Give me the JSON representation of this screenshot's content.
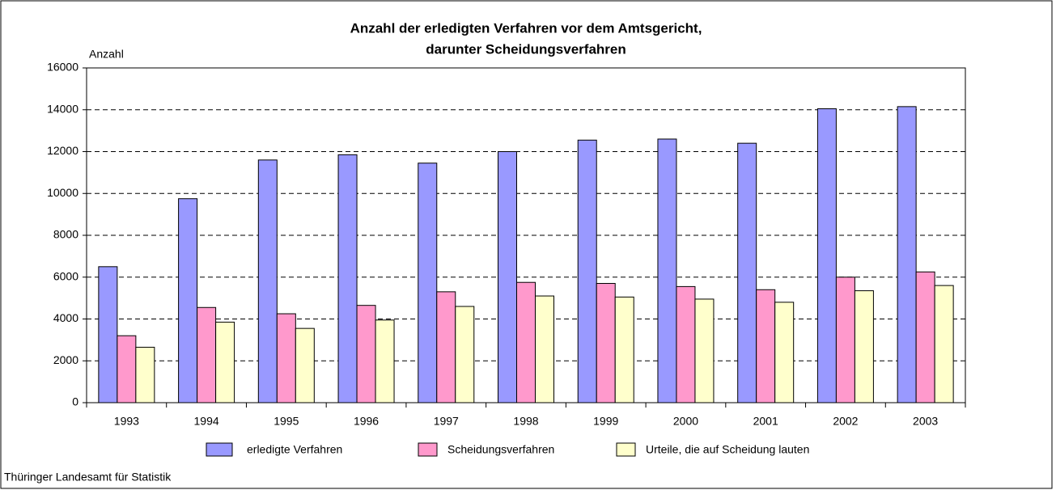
{
  "chart_data": {
    "type": "bar",
    "title": [
      "Anzahl der erledigten Verfahren vor dem Amtsgericht,",
      "darunter Scheidungsverfahren"
    ],
    "y_label": "Anzahl",
    "source": "Thüringer Landesamt für Statistik",
    "categories": [
      "1993",
      "1994",
      "1995",
      "1996",
      "1997",
      "1998",
      "1999",
      "2000",
      "2001",
      "2002",
      "2003"
    ],
    "series": [
      {
        "name": "erledigte Verfahren",
        "color": "#9999ff",
        "values": [
          6500,
          9750,
          11600,
          11850,
          11450,
          12000,
          12550,
          12600,
          12400,
          14050,
          14150
        ]
      },
      {
        "name": "Scheidungsverfahren",
        "color": "#ff99cc",
        "values": [
          3200,
          4550,
          4250,
          4650,
          5300,
          5750,
          5700,
          5550,
          5400,
          6000,
          6250
        ]
      },
      {
        "name": "Urteile, die auf Scheidung lauten",
        "color": "#ffffcc",
        "values": [
          2650,
          3850,
          3550,
          3950,
          4600,
          5100,
          5050,
          4950,
          4800,
          5350,
          5600
        ]
      }
    ],
    "ylim": [
      0,
      16000
    ],
    "yticks": [
      0,
      2000,
      4000,
      6000,
      8000,
      10000,
      12000,
      14000,
      16000
    ],
    "grid": true,
    "legend": "bottom"
  }
}
